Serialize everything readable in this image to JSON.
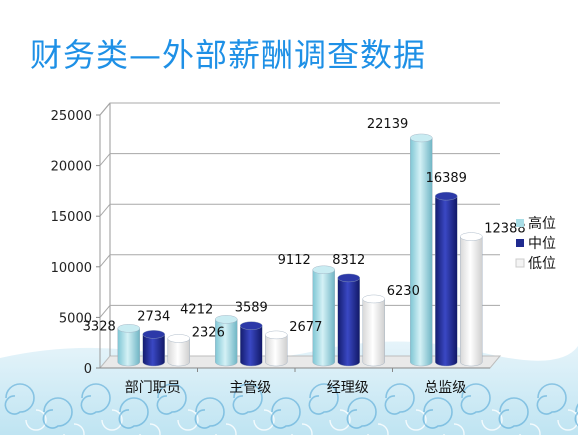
{
  "slide": {
    "title": "财务类—外部薪酬调查数据"
  },
  "colors": {
    "title": "#1e90e6",
    "high": "#a8dde6",
    "mid": "#1f2a8f",
    "low": "#f4f4f4",
    "wave_light": "#bfe4f2",
    "wave_dark": "#4aa3d4"
  },
  "chart_data": {
    "type": "bar",
    "categories": [
      "部门职员",
      "主管级",
      "经理级",
      "总监级"
    ],
    "series": [
      {
        "name": "高位",
        "values": [
          3328,
          4212,
          9112,
          22139
        ]
      },
      {
        "name": "中位",
        "values": [
          2734,
          3589,
          8312,
          16389
        ]
      },
      {
        "name": "低位",
        "values": [
          2326,
          2677,
          6230,
          12388
        ]
      }
    ],
    "y_ticks": [
      "0",
      "5000",
      "10000",
      "15000",
      "20000",
      "25000"
    ],
    "ylim": [
      0,
      25000
    ],
    "grid": true,
    "legend_position": "right",
    "style": "3d-cylinder"
  }
}
